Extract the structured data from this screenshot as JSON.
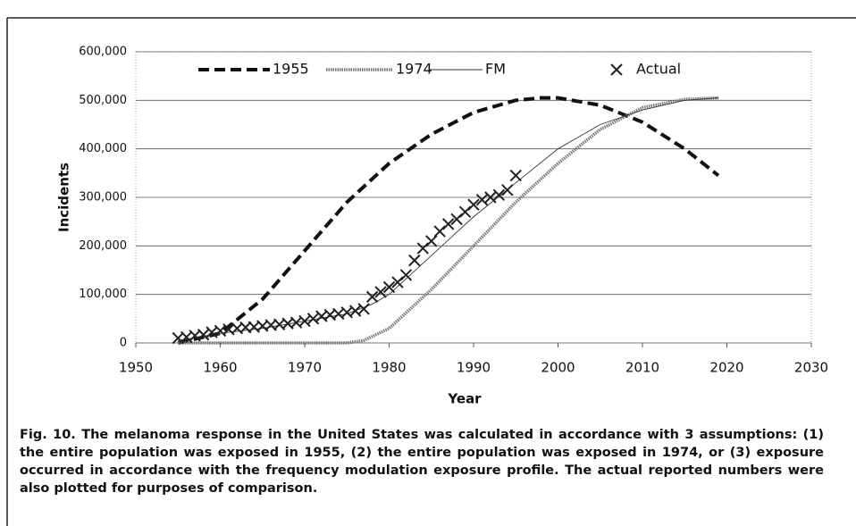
{
  "chart_data": {
    "type": "line",
    "xlabel": "Year",
    "ylabel": "Incidents",
    "xlim": [
      1950,
      2030
    ],
    "xticks": [
      1950,
      1960,
      1970,
      1980,
      1990,
      2000,
      2010,
      2020,
      2030
    ],
    "ylim": [
      0,
      600000
    ],
    "yticks": [
      0,
      {
        "value": 100000,
        "label": "100,000"
      },
      {
        "value": 200000,
        "label": "200,000"
      },
      {
        "value": 300000,
        "label": "300,000"
      },
      {
        "value": 400000,
        "label": "400,000"
      },
      {
        "value": 500000,
        "label": "500,000"
      },
      {
        "value": 600000,
        "label": "600,000"
      }
    ],
    "grid": true,
    "legend": "top",
    "series": [
      {
        "name": "1955",
        "color": "#111111",
        "line_style": "dashed",
        "x": [
          1955,
          1960,
          1965,
          1970,
          1975,
          1980,
          1985,
          1990,
          1995,
          1998,
          2000,
          2005,
          2010,
          2015,
          2019
        ],
        "values": [
          0,
          20000,
          90000,
          190000,
          290000,
          370000,
          430000,
          475000,
          500000,
          505000,
          505000,
          490000,
          455000,
          400000,
          345000
        ]
      },
      {
        "name": "1974",
        "color": "#777777",
        "line_style": "dotted",
        "x": [
          1955,
          1960,
          1965,
          1970,
          1975,
          1977,
          1980,
          1985,
          1990,
          1995,
          2000,
          2005,
          2010,
          2015,
          2019
        ],
        "values": [
          0,
          0,
          0,
          0,
          0,
          5000,
          30000,
          110000,
          200000,
          290000,
          370000,
          440000,
          485000,
          502000,
          505000
        ]
      },
      {
        "name": "FM",
        "color": "#333333",
        "line_style": "solid",
        "x": [
          1955,
          1960,
          1965,
          1970,
          1975,
          1978,
          1980,
          1985,
          1990,
          1995,
          2000,
          2005,
          2010,
          2015,
          2019
        ],
        "values": [
          5000,
          20000,
          30000,
          45000,
          60000,
          80000,
          100000,
          180000,
          260000,
          330000,
          400000,
          450000,
          480000,
          500000,
          505000
        ]
      },
      {
        "name": "Actual",
        "color": "#222222",
        "line_style": "none",
        "marker": "x",
        "x": [
          1955,
          1956,
          1957,
          1958,
          1959,
          1960,
          1961,
          1962,
          1963,
          1964,
          1965,
          1966,
          1967,
          1968,
          1969,
          1970,
          1971,
          1972,
          1973,
          1974,
          1975,
          1976,
          1977,
          1978,
          1979,
          1980,
          1981,
          1982,
          1983,
          1984,
          1985,
          1986,
          1987,
          1988,
          1989,
          1990,
          1991,
          1992,
          1993,
          1994,
          1995
        ],
        "values": [
          10000,
          12000,
          15000,
          17000,
          22000,
          25000,
          28000,
          30000,
          32000,
          33000,
          35000,
          37000,
          38000,
          40000,
          42000,
          45000,
          50000,
          55000,
          58000,
          60000,
          63000,
          66000,
          70000,
          95000,
          105000,
          115000,
          125000,
          140000,
          170000,
          195000,
          210000,
          230000,
          245000,
          255000,
          270000,
          285000,
          295000,
          300000,
          305000,
          315000,
          345000
        ]
      }
    ],
    "caption": "Fig. 10. The melanoma response in the United States was calculated in accordance with 3 assumptions: (1) the entire population was exposed in 1955, (2) the entire population was exposed in 1974, or (3) exposure occurred in accordance with the frequency modulation exposure profile. The actual reported numbers were also plotted for purposes of comparison."
  }
}
